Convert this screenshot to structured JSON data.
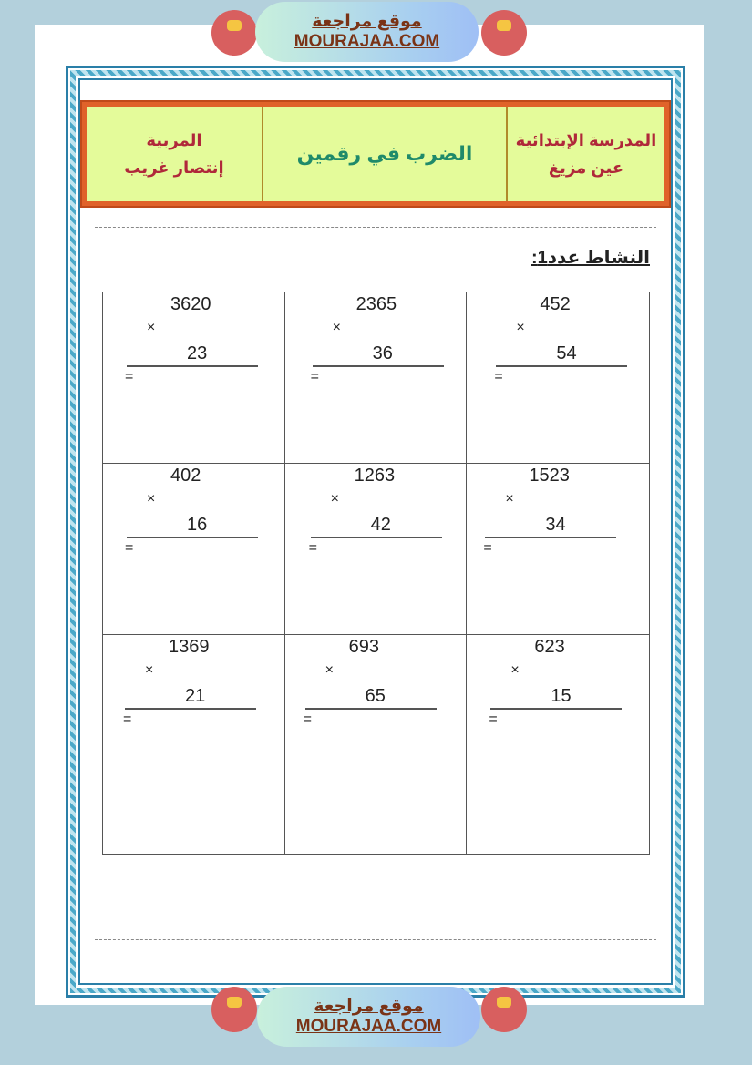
{
  "banner_top": {
    "arabic": "موقع مراجعة",
    "latin": "MOURAJAA.COM"
  },
  "banner_bottom": {
    "arabic": "موقع مراجعة",
    "latin": "MOURAJAA.COM"
  },
  "header": {
    "school_line1": "المدرسة الإبتدائية",
    "school_line2": "عين مزيغ",
    "lesson": "الضرب في رقمين",
    "teacher_line1": "المربية",
    "teacher_line2": "إنتصار غريب"
  },
  "activity_title": "النشاط عدد1:",
  "problems": [
    {
      "a": "3620",
      "b": "23",
      "op": "×",
      "eq": "="
    },
    {
      "a": "2365",
      "b": "36",
      "op": "×",
      "eq": "="
    },
    {
      "a": "452",
      "b": "54",
      "op": "×",
      "eq": "="
    },
    {
      "a": "402",
      "b": "16",
      "op": "×",
      "eq": "="
    },
    {
      "a": "1263",
      "b": "42",
      "op": "×",
      "eq": "="
    },
    {
      "a": "1523",
      "b": "34",
      "op": "×",
      "eq": "="
    },
    {
      "a": "1369",
      "b": "21",
      "op": "×",
      "eq": "="
    },
    {
      "a": "693",
      "b": "65",
      "op": "×",
      "eq": "="
    },
    {
      "a": "623",
      "b": "15",
      "op": "×",
      "eq": "="
    }
  ],
  "colors": {
    "background": "#b3d0dc",
    "header_fill": "#e4fb9a",
    "header_border": "#e0622a",
    "brand": "#7a3316",
    "frame": "#2a7fa8"
  }
}
